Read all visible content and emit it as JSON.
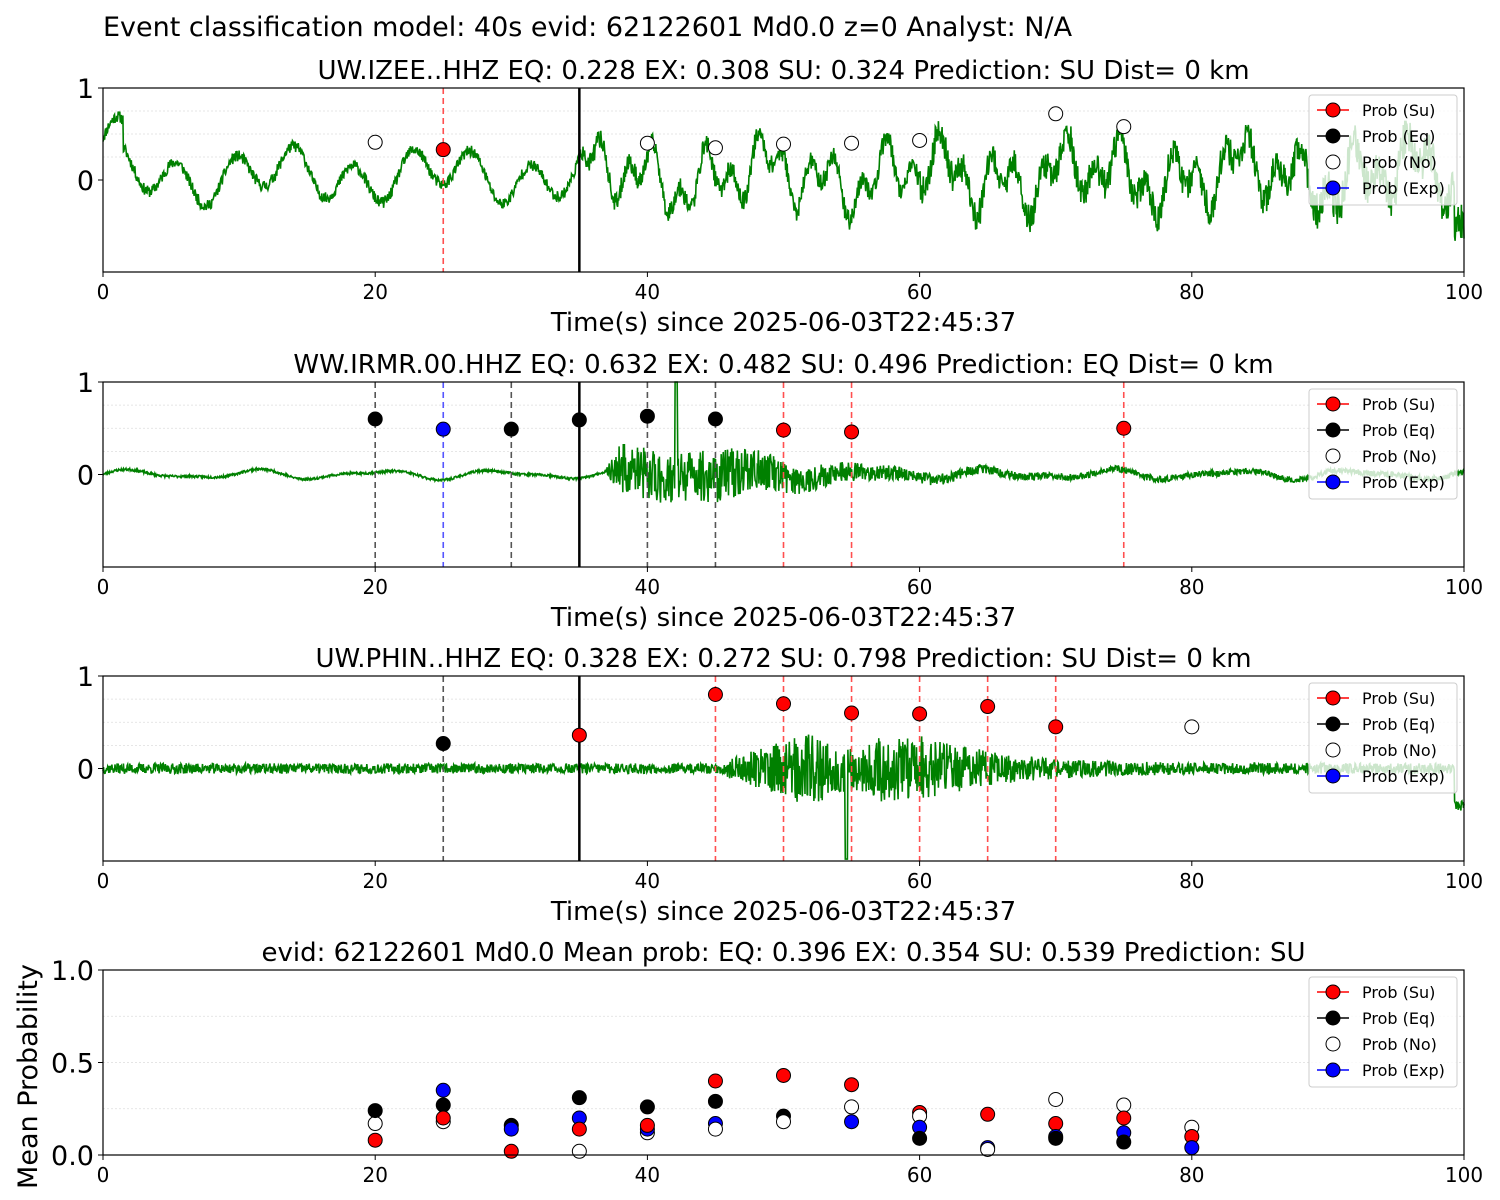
{
  "figure": {
    "suptitle": "Event classification model: 40s evid: 62122601 Md0.0 z=0 Analyst: N/A"
  },
  "colors": {
    "waveform": "#008000",
    "su": "#ff0000",
    "eq": "#000000",
    "no": "#ffffff",
    "exp": "#0000ff",
    "su_line": "#ff5050",
    "eq_line": "#555555",
    "exp_line": "#5555ff"
  },
  "legend_labels": [
    "Prob (Su)",
    "Prob (Eq)",
    "Prob (No)",
    "Prob (Exp)"
  ],
  "chart_data": [
    {
      "type": "scatter",
      "title": "UW.IZEE..HHZ   EQ: 0.228  EX: 0.308  SU: 0.324   Prediction: SU    Dist= 0 km",
      "xlabel": "Time(s) since 2025-06-03T22:45:37",
      "ylabel": "",
      "xlim": [
        0,
        100
      ],
      "ylim": [
        -1,
        1
      ],
      "xticks": [
        "0",
        "20",
        "40",
        "60",
        "80",
        "100"
      ],
      "yticks": [
        "1",
        "0"
      ],
      "legend_position": "upper-right",
      "waveform_style": "izee",
      "window_start_line": 35,
      "points": [
        {
          "x": 20,
          "y": 0.41,
          "class": "no"
        },
        {
          "x": 25,
          "y": 0.33,
          "class": "su"
        },
        {
          "x": 40,
          "y": 0.4,
          "class": "no"
        },
        {
          "x": 45,
          "y": 0.35,
          "class": "no"
        },
        {
          "x": 50,
          "y": 0.39,
          "class": "no"
        },
        {
          "x": 55,
          "y": 0.4,
          "class": "no"
        },
        {
          "x": 60,
          "y": 0.43,
          "class": "no"
        },
        {
          "x": 70,
          "y": 0.72,
          "class": "no"
        },
        {
          "x": 75,
          "y": 0.58,
          "class": "no"
        }
      ],
      "vlines": [
        {
          "x": 25,
          "class": "su"
        }
      ]
    },
    {
      "type": "scatter",
      "title": "WW.IRMR.00.HHZ   EQ: 0.632  EX: 0.482  SU: 0.496   Prediction: EQ    Dist= 0 km",
      "xlabel": "Time(s) since 2025-06-03T22:45:37",
      "ylabel": "",
      "xlim": [
        0,
        100
      ],
      "ylim": [
        -1,
        1
      ],
      "xticks": [
        "0",
        "20",
        "40",
        "60",
        "80",
        "100"
      ],
      "yticks": [
        "1",
        "0"
      ],
      "legend_position": "upper-right",
      "waveform_style": "irmr",
      "window_start_line": 35,
      "points": [
        {
          "x": 20,
          "y": 0.6,
          "class": "eq"
        },
        {
          "x": 25,
          "y": 0.49,
          "class": "exp"
        },
        {
          "x": 30,
          "y": 0.49,
          "class": "eq"
        },
        {
          "x": 35,
          "y": 0.59,
          "class": "eq"
        },
        {
          "x": 40,
          "y": 0.63,
          "class": "eq"
        },
        {
          "x": 45,
          "y": 0.6,
          "class": "eq"
        },
        {
          "x": 50,
          "y": 0.48,
          "class": "su"
        },
        {
          "x": 55,
          "y": 0.46,
          "class": "su"
        },
        {
          "x": 75,
          "y": 0.5,
          "class": "su"
        }
      ],
      "vlines": [
        {
          "x": 20,
          "class": "eq"
        },
        {
          "x": 25,
          "class": "exp"
        },
        {
          "x": 30,
          "class": "eq"
        },
        {
          "x": 40,
          "class": "eq"
        },
        {
          "x": 45,
          "class": "eq"
        },
        {
          "x": 50,
          "class": "su"
        },
        {
          "x": 55,
          "class": "su"
        },
        {
          "x": 75,
          "class": "su"
        }
      ]
    },
    {
      "type": "scatter",
      "title": "UW.PHIN..HHZ   EQ: 0.328  EX: 0.272  SU: 0.798   Prediction: SU    Dist= 0 km",
      "xlabel": "Time(s) since 2025-06-03T22:45:37",
      "ylabel": "",
      "xlim": [
        0,
        100
      ],
      "ylim": [
        -1,
        1
      ],
      "xticks": [
        "0",
        "20",
        "40",
        "60",
        "80",
        "100"
      ],
      "yticks": [
        "1",
        "0"
      ],
      "legend_position": "upper-right",
      "waveform_style": "phin",
      "window_start_line": 35,
      "points": [
        {
          "x": 25,
          "y": 0.27,
          "class": "eq"
        },
        {
          "x": 35,
          "y": 0.36,
          "class": "su"
        },
        {
          "x": 45,
          "y": 0.8,
          "class": "su"
        },
        {
          "x": 50,
          "y": 0.7,
          "class": "su"
        },
        {
          "x": 55,
          "y": 0.6,
          "class": "su"
        },
        {
          "x": 60,
          "y": 0.59,
          "class": "su"
        },
        {
          "x": 65,
          "y": 0.67,
          "class": "su"
        },
        {
          "x": 70,
          "y": 0.45,
          "class": "su"
        },
        {
          "x": 80,
          "y": 0.45,
          "class": "no"
        }
      ],
      "vlines": [
        {
          "x": 25,
          "class": "eq"
        },
        {
          "x": 45,
          "class": "su"
        },
        {
          "x": 50,
          "class": "su"
        },
        {
          "x": 55,
          "class": "su"
        },
        {
          "x": 60,
          "class": "su"
        },
        {
          "x": 65,
          "class": "su"
        },
        {
          "x": 70,
          "class": "su"
        }
      ]
    },
    {
      "type": "scatter",
      "title": "evid: 62122601  Md0.0   Mean prob:   EQ: 0.396  EX: 0.354  SU: 0.539   Prediction: SU",
      "xlabel": "",
      "ylabel": "Mean Probability",
      "xlim": [
        0,
        100
      ],
      "ylim": [
        0,
        1
      ],
      "xticks": [
        "0",
        "20",
        "40",
        "60",
        "80",
        "100"
      ],
      "yticks": [
        "1.0",
        "0.5",
        "0.0"
      ],
      "legend_position": "upper-right",
      "waveform_style": "",
      "window_start_line": null,
      "points": [
        {
          "x": 20,
          "y": 0.17,
          "class": "no"
        },
        {
          "x": 20,
          "y": 0.24,
          "class": "eq"
        },
        {
          "x": 20,
          "y": 0.08,
          "class": "su"
        },
        {
          "x": 25,
          "y": 0.18,
          "class": "no"
        },
        {
          "x": 25,
          "y": 0.27,
          "class": "eq"
        },
        {
          "x": 25,
          "y": 0.2,
          "class": "su"
        },
        {
          "x": 25,
          "y": 0.35,
          "class": "exp"
        },
        {
          "x": 30,
          "y": 0.16,
          "class": "eq"
        },
        {
          "x": 30,
          "y": 0.14,
          "class": "exp"
        },
        {
          "x": 30,
          "y": 0.02,
          "class": "su"
        },
        {
          "x": 35,
          "y": 0.31,
          "class": "eq"
        },
        {
          "x": 35,
          "y": 0.2,
          "class": "exp"
        },
        {
          "x": 35,
          "y": 0.14,
          "class": "su"
        },
        {
          "x": 35,
          "y": 0.02,
          "class": "no"
        },
        {
          "x": 40,
          "y": 0.26,
          "class": "eq"
        },
        {
          "x": 40,
          "y": 0.12,
          "class": "no"
        },
        {
          "x": 40,
          "y": 0.14,
          "class": "exp"
        },
        {
          "x": 40,
          "y": 0.16,
          "class": "su"
        },
        {
          "x": 45,
          "y": 0.4,
          "class": "su"
        },
        {
          "x": 45,
          "y": 0.29,
          "class": "eq"
        },
        {
          "x": 45,
          "y": 0.17,
          "class": "exp"
        },
        {
          "x": 45,
          "y": 0.14,
          "class": "no"
        },
        {
          "x": 50,
          "y": 0.43,
          "class": "su"
        },
        {
          "x": 50,
          "y": 0.21,
          "class": "eq"
        },
        {
          "x": 50,
          "y": 0.18,
          "class": "no"
        },
        {
          "x": 55,
          "y": 0.38,
          "class": "su"
        },
        {
          "x": 55,
          "y": 0.26,
          "class": "no"
        },
        {
          "x": 55,
          "y": 0.18,
          "class": "exp"
        },
        {
          "x": 60,
          "y": 0.23,
          "class": "su"
        },
        {
          "x": 60,
          "y": 0.21,
          "class": "no"
        },
        {
          "x": 60,
          "y": 0.15,
          "class": "exp"
        },
        {
          "x": 60,
          "y": 0.09,
          "class": "eq"
        },
        {
          "x": 65,
          "y": 0.22,
          "class": "su"
        },
        {
          "x": 65,
          "y": 0.04,
          "class": "exp"
        },
        {
          "x": 65,
          "y": 0.03,
          "class": "no"
        },
        {
          "x": 70,
          "y": 0.3,
          "class": "no"
        },
        {
          "x": 70,
          "y": 0.17,
          "class": "su"
        },
        {
          "x": 70,
          "y": 0.1,
          "class": "exp"
        },
        {
          "x": 70,
          "y": 0.09,
          "class": "eq"
        },
        {
          "x": 75,
          "y": 0.27,
          "class": "no"
        },
        {
          "x": 75,
          "y": 0.2,
          "class": "su"
        },
        {
          "x": 75,
          "y": 0.12,
          "class": "exp"
        },
        {
          "x": 75,
          "y": 0.07,
          "class": "eq"
        },
        {
          "x": 80,
          "y": 0.15,
          "class": "no"
        },
        {
          "x": 80,
          "y": 0.1,
          "class": "su"
        },
        {
          "x": 80,
          "y": 0.04,
          "class": "exp"
        }
      ],
      "vlines": []
    }
  ]
}
